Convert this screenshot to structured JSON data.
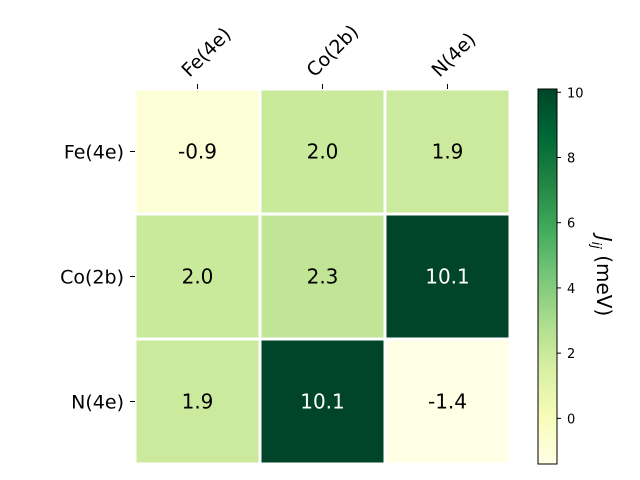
{
  "chart_data": {
    "type": "heatmap",
    "rows": [
      "Fe(4e)",
      "Co(2b)",
      "N(4e)"
    ],
    "columns": [
      "Fe(4e)",
      "Co(2b)",
      "N(4e)"
    ],
    "values": [
      [
        -0.9,
        2.0,
        1.9
      ],
      [
        2.0,
        2.3,
        10.1
      ],
      [
        1.9,
        10.1,
        -1.4
      ]
    ],
    "value_labels": [
      [
        "-0.9",
        "2.0",
        "1.9"
      ],
      [
        "2.0",
        "2.3",
        "10.1"
      ],
      [
        "1.9",
        "10.1",
        "-1.4"
      ]
    ],
    "colormap": "YlGn",
    "colormap_stops": [
      "#ffffe5",
      "#f7fcb9",
      "#d9f0a3",
      "#addd8e",
      "#78c679",
      "#41ab5d",
      "#238443",
      "#006837",
      "#004529"
    ],
    "colorbar": {
      "label_main": "J",
      "label_sub": "ij",
      "label_unit": " (meV)",
      "range": [
        -1.4,
        10.1
      ],
      "ticks": [
        0,
        2,
        4,
        6,
        8,
        10
      ],
      "tick_labels": [
        "0",
        "2",
        "4",
        "6",
        "8",
        "10"
      ]
    },
    "column_label_position": "top",
    "grid": false
  }
}
